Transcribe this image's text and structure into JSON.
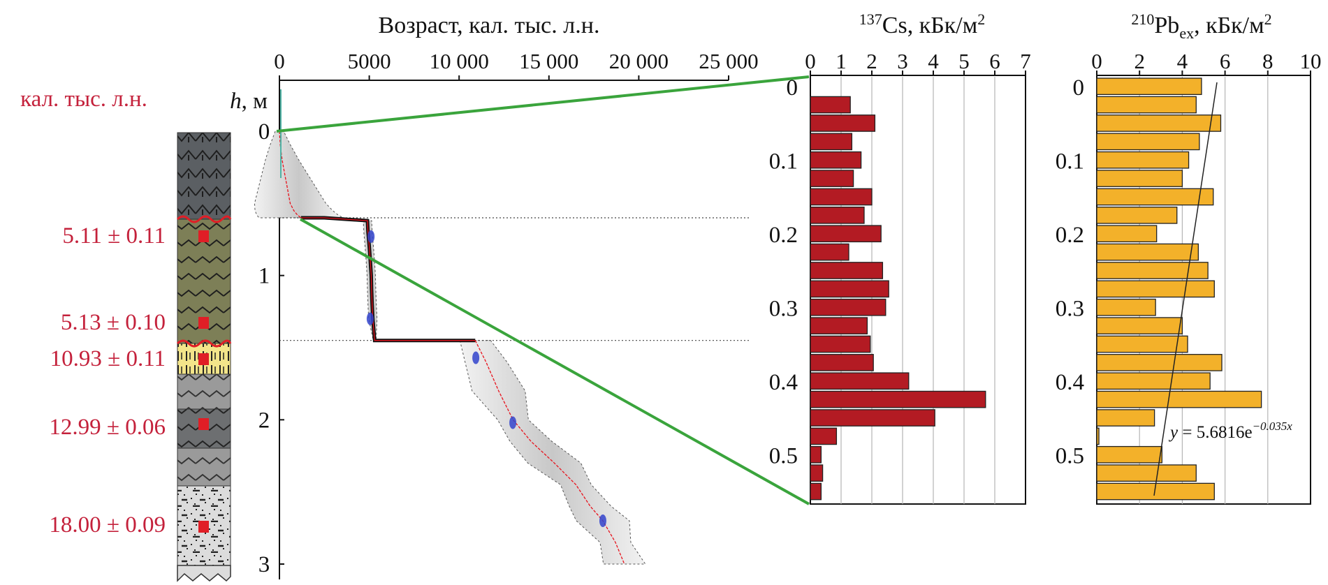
{
  "colors": {
    "red_label": "#c4213b",
    "cs_bar": "#b31b23",
    "pb_bar": "#f3b12a",
    "green_line": "#3aa43c",
    "model_mean": "#e8121c",
    "date_marker": "#3344cc",
    "sample": "#e01e26"
  },
  "labels": {
    "age_unit": "кал. тыс. л.н.",
    "age_axis_title": "Возраст, кал. тыс. л.н.",
    "h_axis_h": "h",
    "h_axis_unit": ", м",
    "cs_title_sup": "137",
    "cs_title": "Cs, кБк/м",
    "cs_title_unit_sup": "2",
    "pb_title_sup": "210",
    "pb_title": "Pb",
    "pb_title_sub": "ex",
    "pb_title_rest": ", кБк/м",
    "pb_title_unit_sup": "2",
    "fit_eq_prefix": "y",
    "fit_eq_mid": " = 5.6816e",
    "fit_eq_exp": "−0.035x"
  },
  "dates": [
    "5.11 ± 0.11",
    "5.13 ± 0.10",
    "10.93 ± 0.11",
    "12.99 ± 0.06",
    "18.00 ± 0.09"
  ],
  "chart_data": [
    {
      "type": "line",
      "xlabel": "Возраст, кал. тыс. л.н.",
      "ylabel": "h, м",
      "x_ticks": [
        "0",
        "5000",
        "10 000",
        "15 000",
        "20 000",
        "25 000"
      ],
      "y_ticks": [
        "0",
        "1",
        "2",
        "3"
      ],
      "xlim": [
        0,
        25000
      ],
      "ylim": [
        0,
        3
      ],
      "series": [
        {
          "x": [
            0,
            50,
            150,
            300,
            450,
            600,
            800,
            1000,
            1200
          ],
          "y": [
            0,
            0.1,
            0.2,
            0.3,
            0.4,
            0.5,
            0.55,
            0.58,
            0.6
          ]
        },
        {
          "x": [
            1200,
            2500,
            4900,
            4930,
            5000,
            5060,
            5110,
            5130,
            5160,
            5200,
            5300,
            7000,
            10900
          ],
          "y": [
            0.6,
            0.6,
            0.62,
            0.7,
            0.8,
            0.9,
            1.0,
            1.1,
            1.2,
            1.3,
            1.45,
            1.45,
            1.45
          ]
        },
        {
          "x": [
            10900,
            11500,
            12200,
            13000,
            14000,
            15300,
            16500,
            17300,
            18000,
            18700,
            19200
          ],
          "y": [
            1.45,
            1.6,
            1.8,
            2.0,
            2.15,
            2.3,
            2.45,
            2.6,
            2.7,
            2.85,
            3.0
          ]
        }
      ],
      "dated_points": [
        {
          "age": 5100,
          "h": 0.73
        },
        {
          "age": 5050,
          "h": 1.3
        },
        {
          "age": 10930,
          "h": 1.57
        },
        {
          "age": 12990,
          "h": 2.02
        },
        {
          "age": 18000,
          "h": 2.7
        }
      ],
      "section_breaks_h": [
        0.6,
        1.45
      ]
    },
    {
      "type": "bar",
      "orientation": "horizontal",
      "title": "137Cs, кБк/м2",
      "x_ticks": [
        "0",
        "1",
        "2",
        "3",
        "4",
        "5",
        "6",
        "7"
      ],
      "y_ticks": [
        "0",
        "0.1",
        "0.2",
        "0.3",
        "0.4",
        "0.5"
      ],
      "xlim": [
        0,
        7
      ],
      "ylim": [
        0,
        0.58
      ],
      "depth_top": [
        0.025,
        0.05,
        0.075,
        0.1,
        0.125,
        0.15,
        0.175,
        0.2,
        0.225,
        0.25,
        0.275,
        0.3,
        0.325,
        0.35,
        0.375,
        0.4,
        0.425,
        0.45,
        0.475,
        0.5,
        0.525,
        0.55
      ],
      "values": [
        1.3,
        2.1,
        1.35,
        1.65,
        1.4,
        2.0,
        1.75,
        2.3,
        1.25,
        2.35,
        2.55,
        2.45,
        1.85,
        1.95,
        2.05,
        3.2,
        5.7,
        4.05,
        0.85,
        0.35,
        0.4,
        0.35
      ]
    },
    {
      "type": "bar",
      "orientation": "horizontal",
      "title": "210Pbex, кБк/м2",
      "x_ticks": [
        "0",
        "2",
        "4",
        "6",
        "8",
        "10"
      ],
      "y_ticks": [
        "0",
        "0.1",
        "0.2",
        "0.3",
        "0.4",
        "0.5"
      ],
      "xlim": [
        0,
        10
      ],
      "ylim": [
        0,
        0.58
      ],
      "depth_top": [
        0.0,
        0.025,
        0.05,
        0.075,
        0.1,
        0.125,
        0.15,
        0.175,
        0.2,
        0.225,
        0.25,
        0.275,
        0.3,
        0.325,
        0.35,
        0.375,
        0.4,
        0.425,
        0.45,
        0.475,
        0.5,
        0.525,
        0.55
      ],
      "values": [
        4.9,
        4.65,
        5.8,
        4.8,
        4.3,
        4.0,
        5.45,
        3.75,
        2.8,
        4.75,
        5.2,
        5.5,
        2.75,
        4.0,
        4.25,
        5.85,
        5.3,
        7.7,
        2.7,
        0.1,
        3.05,
        4.65,
        5.5
      ],
      "fit": {
        "equation": "y = 5.6816e^(−0.035x)"
      }
    }
  ]
}
